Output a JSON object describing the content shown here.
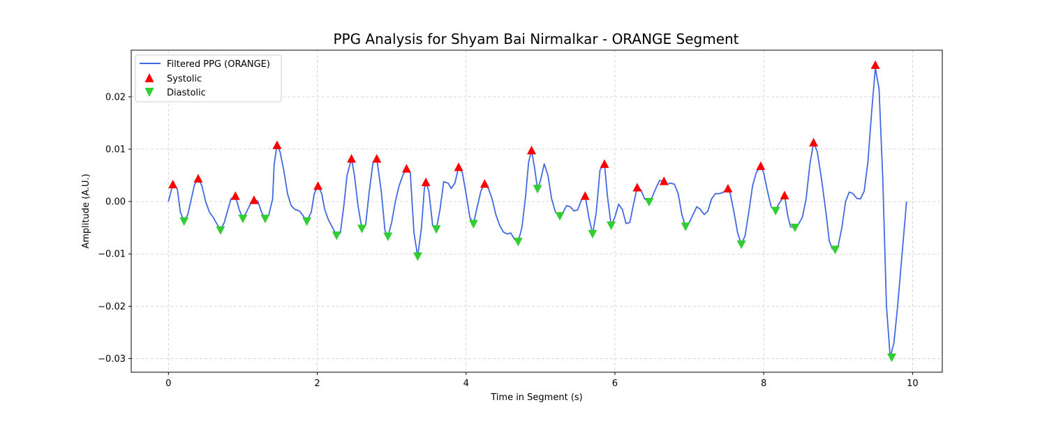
{
  "chart_data": {
    "type": "line",
    "title": "PPG Analysis for Shyam Bai Nirmalkar - ORANGE Segment",
    "xlabel": "Time in Segment (s)",
    "ylabel": "Amplitude (A.U.)",
    "xlim": [
      -0.5,
      10.4
    ],
    "ylim": [
      -0.0326,
      0.0289
    ],
    "xticks": [
      0,
      2,
      4,
      6,
      8,
      10
    ],
    "xtick_labels": [
      "0",
      "2",
      "4",
      "6",
      "8",
      "10"
    ],
    "yticks": [
      -0.03,
      -0.02,
      -0.01,
      0.0,
      0.01,
      0.02
    ],
    "ytick_labels": [
      "−0.03",
      "−0.02",
      "−0.01",
      "0.00",
      "0.01",
      "0.02"
    ],
    "grid": true,
    "legend_position": "top-left",
    "colors": {
      "line": "#4169e1",
      "systolic": "#ff0000",
      "diastolic": "#32cd32",
      "grid": "#cccccc"
    },
    "series": [
      {
        "name": "Filtered PPG (ORANGE)",
        "style": "line",
        "points": [
          [
            0.0,
            0.0
          ],
          [
            0.06,
            0.0033
          ],
          [
            0.12,
            0.0024
          ],
          [
            0.16,
            -0.002
          ],
          [
            0.21,
            -0.0038
          ],
          [
            0.26,
            -0.0025
          ],
          [
            0.3,
            0.0
          ],
          [
            0.35,
            0.0032
          ],
          [
            0.4,
            0.0044
          ],
          [
            0.45,
            0.003
          ],
          [
            0.5,
            0.0
          ],
          [
            0.55,
            -0.002
          ],
          [
            0.6,
            -0.003
          ],
          [
            0.66,
            -0.0045
          ],
          [
            0.7,
            -0.0055
          ],
          [
            0.75,
            -0.004
          ],
          [
            0.8,
            -0.0015
          ],
          [
            0.84,
            0.0005
          ],
          [
            0.9,
            0.0011
          ],
          [
            0.95,
            -0.0015
          ],
          [
            1.0,
            -0.0033
          ],
          [
            1.05,
            -0.002
          ],
          [
            1.1,
            -0.0005
          ],
          [
            1.15,
            0.0003
          ],
          [
            1.2,
            0.0001
          ],
          [
            1.25,
            -0.002
          ],
          [
            1.3,
            -0.0033
          ],
          [
            1.35,
            -0.0025
          ],
          [
            1.4,
            0.0005
          ],
          [
            1.42,
            0.007
          ],
          [
            1.46,
            0.0108
          ],
          [
            1.5,
            0.0095
          ],
          [
            1.55,
            0.006
          ],
          [
            1.6,
            0.0015
          ],
          [
            1.65,
            -0.0008
          ],
          [
            1.7,
            -0.0015
          ],
          [
            1.76,
            -0.0018
          ],
          [
            1.8,
            -0.0025
          ],
          [
            1.86,
            -0.0038
          ],
          [
            1.92,
            -0.002
          ],
          [
            1.96,
            0.0015
          ],
          [
            2.01,
            0.003
          ],
          [
            2.06,
            0.0015
          ],
          [
            2.1,
            -0.0015
          ],
          [
            2.15,
            -0.0035
          ],
          [
            2.2,
            -0.0048
          ],
          [
            2.26,
            -0.0065
          ],
          [
            2.31,
            -0.006
          ],
          [
            2.36,
            -0.0005
          ],
          [
            2.4,
            0.005
          ],
          [
            2.46,
            0.0082
          ],
          [
            2.5,
            0.005
          ],
          [
            2.55,
            -0.001
          ],
          [
            2.6,
            -0.0052
          ],
          [
            2.65,
            -0.0045
          ],
          [
            2.7,
            0.002
          ],
          [
            2.75,
            0.0075
          ],
          [
            2.8,
            0.0082
          ],
          [
            2.86,
            0.002
          ],
          [
            2.91,
            -0.0055
          ],
          [
            2.95,
            -0.0067
          ],
          [
            3.0,
            -0.004
          ],
          [
            3.05,
            0.0
          ],
          [
            3.1,
            0.003
          ],
          [
            3.15,
            0.005
          ],
          [
            3.2,
            0.0063
          ],
          [
            3.25,
            0.0055
          ],
          [
            3.3,
            -0.006
          ],
          [
            3.35,
            -0.0105
          ],
          [
            3.4,
            -0.005
          ],
          [
            3.44,
            0.0025
          ],
          [
            3.46,
            0.0037
          ],
          [
            3.5,
            0.002
          ],
          [
            3.55,
            -0.0045
          ],
          [
            3.6,
            -0.0053
          ],
          [
            3.65,
            -0.0015
          ],
          [
            3.7,
            0.0038
          ],
          [
            3.76,
            0.0035
          ],
          [
            3.8,
            0.0025
          ],
          [
            3.85,
            0.0035
          ],
          [
            3.9,
            0.0066
          ],
          [
            3.95,
            0.0055
          ],
          [
            4.0,
            0.0015
          ],
          [
            4.05,
            -0.003
          ],
          [
            4.1,
            -0.0043
          ],
          [
            4.15,
            -0.001
          ],
          [
            4.2,
            0.002
          ],
          [
            4.25,
            0.0034
          ],
          [
            4.3,
            0.0025
          ],
          [
            4.35,
            0.0005
          ],
          [
            4.4,
            -0.0025
          ],
          [
            4.45,
            -0.0045
          ],
          [
            4.5,
            -0.0058
          ],
          [
            4.55,
            -0.0062
          ],
          [
            4.6,
            -0.006
          ],
          [
            4.65,
            -0.0072
          ],
          [
            4.7,
            -0.0077
          ],
          [
            4.75,
            -0.005
          ],
          [
            4.8,
            0.001
          ],
          [
            4.84,
            0.0075
          ],
          [
            4.88,
            0.0098
          ],
          [
            4.92,
            0.0065
          ],
          [
            4.96,
            0.0024
          ],
          [
            5.0,
            0.004
          ],
          [
            5.05,
            0.0072
          ],
          [
            5.1,
            0.005
          ],
          [
            5.15,
            0.0005
          ],
          [
            5.2,
            -0.002
          ],
          [
            5.26,
            -0.0028
          ],
          [
            5.3,
            -0.0022
          ],
          [
            5.35,
            -0.0008
          ],
          [
            5.4,
            -0.001
          ],
          [
            5.45,
            -0.0018
          ],
          [
            5.5,
            -0.0016
          ],
          [
            5.55,
            0.0003
          ],
          [
            5.6,
            0.0011
          ],
          [
            5.65,
            -0.003
          ],
          [
            5.7,
            -0.0062
          ],
          [
            5.75,
            -0.002
          ],
          [
            5.8,
            0.006
          ],
          [
            5.86,
            0.0072
          ],
          [
            5.9,
            0.001
          ],
          [
            5.95,
            -0.0046
          ],
          [
            6.0,
            -0.003
          ],
          [
            6.05,
            -0.0005
          ],
          [
            6.1,
            -0.0015
          ],
          [
            6.15,
            -0.0042
          ],
          [
            6.2,
            -0.004
          ],
          [
            6.25,
            -0.0005
          ],
          [
            6.3,
            0.0027
          ],
          [
            6.35,
            0.0022
          ],
          [
            6.4,
            0.0005
          ],
          [
            6.46,
            -0.0001
          ],
          [
            6.5,
            0.0008
          ],
          [
            6.55,
            0.0025
          ],
          [
            6.6,
            0.004
          ],
          [
            6.66,
            0.0039
          ],
          [
            6.7,
            0.0033
          ],
          [
            6.75,
            0.0035
          ],
          [
            6.8,
            0.0033
          ],
          [
            6.85,
            0.0015
          ],
          [
            6.9,
            -0.0025
          ],
          [
            6.95,
            -0.0048
          ],
          [
            7.0,
            -0.004
          ],
          [
            7.05,
            -0.0025
          ],
          [
            7.1,
            -0.001
          ],
          [
            7.15,
            -0.0015
          ],
          [
            7.2,
            -0.0025
          ],
          [
            7.25,
            -0.0018
          ],
          [
            7.3,
            0.0005
          ],
          [
            7.35,
            0.0015
          ],
          [
            7.4,
            0.0015
          ],
          [
            7.45,
            0.0017
          ],
          [
            7.52,
            0.0025
          ],
          [
            7.55,
            0.0015
          ],
          [
            7.6,
            -0.002
          ],
          [
            7.65,
            -0.006
          ],
          [
            7.7,
            -0.0082
          ],
          [
            7.75,
            -0.0065
          ],
          [
            7.8,
            -0.002
          ],
          [
            7.85,
            0.003
          ],
          [
            7.9,
            0.0055
          ],
          [
            7.96,
            0.0068
          ],
          [
            8.0,
            0.0055
          ],
          [
            8.05,
            0.002
          ],
          [
            8.1,
            -0.001
          ],
          [
            8.16,
            -0.0018
          ],
          [
            8.2,
            -0.0005
          ],
          [
            8.25,
            0.0005
          ],
          [
            8.28,
            0.0012
          ],
          [
            8.32,
            -0.0025
          ],
          [
            8.36,
            -0.0048
          ],
          [
            8.42,
            -0.005
          ],
          [
            8.46,
            -0.0045
          ],
          [
            8.52,
            -0.003
          ],
          [
            8.57,
            0.0005
          ],
          [
            8.62,
            0.007
          ],
          [
            8.67,
            0.0113
          ],
          [
            8.72,
            0.0095
          ],
          [
            8.78,
            0.004
          ],
          [
            8.84,
            -0.0025
          ],
          [
            8.88,
            -0.0075
          ],
          [
            8.92,
            -0.009
          ],
          [
            8.96,
            -0.0092
          ],
          [
            9.0,
            -0.0085
          ],
          [
            9.05,
            -0.005
          ],
          [
            9.1,
            0.0
          ],
          [
            9.15,
            0.0018
          ],
          [
            9.2,
            0.0015
          ],
          [
            9.25,
            0.0006
          ],
          [
            9.3,
            0.0005
          ],
          [
            9.35,
            0.002
          ],
          [
            9.4,
            0.0075
          ],
          [
            9.45,
            0.017
          ],
          [
            9.5,
            0.0255
          ],
          [
            9.55,
            0.0215
          ],
          [
            9.6,
            0.0045
          ],
          [
            9.65,
            -0.02
          ],
          [
            9.7,
            -0.0298
          ],
          [
            9.75,
            -0.027
          ],
          [
            9.8,
            -0.02
          ],
          [
            9.86,
            -0.01
          ],
          [
            9.92,
            0.0
          ]
        ]
      },
      {
        "name": "Systolic",
        "style": "marker-up",
        "points": [
          [
            0.06,
            0.0033
          ],
          [
            0.4,
            0.0044
          ],
          [
            0.9,
            0.0011
          ],
          [
            1.15,
            0.0003
          ],
          [
            1.46,
            0.0108
          ],
          [
            2.01,
            0.003
          ],
          [
            2.46,
            0.0082
          ],
          [
            2.8,
            0.0082
          ],
          [
            3.2,
            0.0063
          ],
          [
            3.46,
            0.0037
          ],
          [
            3.9,
            0.0066
          ],
          [
            4.25,
            0.0034
          ],
          [
            4.88,
            0.0098
          ],
          [
            5.6,
            0.0011
          ],
          [
            5.86,
            0.0072
          ],
          [
            6.3,
            0.0027
          ],
          [
            6.66,
            0.0039
          ],
          [
            7.52,
            0.0025
          ],
          [
            7.96,
            0.0068
          ],
          [
            8.28,
            0.0012
          ],
          [
            8.67,
            0.0113
          ],
          [
            9.5,
            0.0261
          ]
        ]
      },
      {
        "name": "Diastolic",
        "style": "marker-down",
        "points": [
          [
            0.21,
            -0.0038
          ],
          [
            0.7,
            -0.0055
          ],
          [
            1.0,
            -0.0033
          ],
          [
            1.3,
            -0.0033
          ],
          [
            1.86,
            -0.0038
          ],
          [
            2.26,
            -0.0065
          ],
          [
            2.6,
            -0.0052
          ],
          [
            2.95,
            -0.0067
          ],
          [
            3.35,
            -0.0105
          ],
          [
            3.6,
            -0.0053
          ],
          [
            4.1,
            -0.0043
          ],
          [
            4.7,
            -0.0077
          ],
          [
            4.96,
            0.0024
          ],
          [
            5.26,
            -0.0028
          ],
          [
            5.7,
            -0.0062
          ],
          [
            5.95,
            -0.0046
          ],
          [
            6.46,
            -0.0001
          ],
          [
            6.95,
            -0.0048
          ],
          [
            7.7,
            -0.0082
          ],
          [
            8.16,
            -0.0018
          ],
          [
            8.42,
            -0.005
          ],
          [
            8.96,
            -0.0092
          ],
          [
            9.72,
            -0.0298
          ]
        ]
      }
    ]
  }
}
